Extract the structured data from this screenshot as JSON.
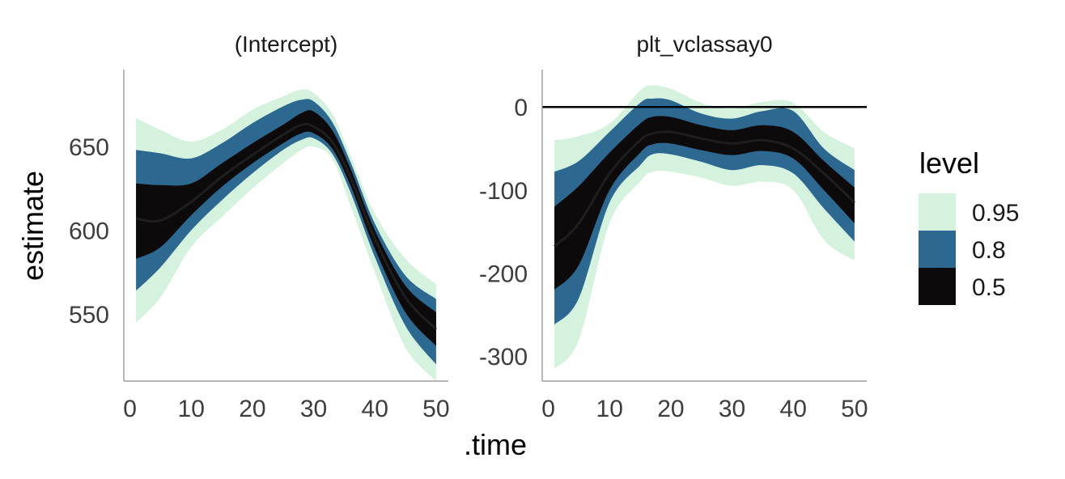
{
  "chart_data": {
    "type": "area",
    "xlabel": ".time",
    "ylabel": "estimate",
    "legend": {
      "title": "level",
      "position": "right",
      "entries": [
        {
          "label": "0.95",
          "color": "#d4f2de"
        },
        {
          "label": "0.8",
          "color": "#2d6891"
        },
        {
          "label": "0.5",
          "color": "#0d0a0b"
        }
      ]
    },
    "grid": false,
    "panels": [
      {
        "title": "(Intercept)",
        "xlim": [
          -1,
          52
        ],
        "ylim": [
          510,
          696
        ],
        "x_ticks": [
          0,
          10,
          20,
          30,
          40,
          50
        ],
        "y_ticks": [
          550,
          600,
          650
        ],
        "x": [
          1,
          5,
          10,
          15,
          20,
          25,
          28,
          30,
          33,
          36,
          40,
          45,
          50
        ],
        "median": [
          607,
          606,
          617,
          632,
          645,
          657,
          663,
          662,
          653,
          632,
          595,
          560,
          541
        ],
        "bands": [
          {
            "level": "0.95",
            "lower": [
              545,
              560,
              590,
              608,
              625,
              640,
              648,
              650,
              643,
              615,
              575,
              530,
              510
            ],
            "upper": [
              667,
              660,
              653,
              660,
              672,
              680,
              684,
              682,
              670,
              645,
              610,
              583,
              568
            ]
          },
          {
            "level": "0.8",
            "lower": [
              564,
              578,
              600,
              618,
              634,
              648,
              654,
              655,
              646,
              623,
              584,
              543,
              520
            ],
            "upper": [
              648,
              646,
              643,
              652,
              664,
              674,
              678,
              677,
              665,
              641,
              604,
              573,
              559
            ]
          },
          {
            "level": "0.5",
            "lower": [
              583,
              590,
              609,
              626,
              640,
              652,
              658,
              658,
              649,
              627,
              589,
              551,
              531
            ],
            "upper": [
              628,
              627,
              628,
              640,
              652,
              663,
              670,
              671,
              660,
              637,
              600,
              567,
              551
            ]
          }
        ]
      },
      {
        "title": "plt_vclassay0",
        "xlim": [
          -1,
          52
        ],
        "ylim": [
          -330,
          45
        ],
        "x_ticks": [
          0,
          10,
          20,
          30,
          40,
          50
        ],
        "y_ticks": [
          -300,
          -200,
          -100,
          0
        ],
        "reference_line": 0,
        "x": [
          1,
          5,
          10,
          15,
          17,
          20,
          25,
          30,
          35,
          40,
          45,
          50
        ],
        "median": [
          -168,
          -140,
          -80,
          -40,
          -32,
          -30,
          -38,
          -44,
          -40,
          -50,
          -80,
          -115
        ],
        "bands": [
          {
            "level": "0.95",
            "lower": [
              -315,
              -280,
              -140,
              -90,
              -78,
              -78,
              -85,
              -95,
              -90,
              -100,
              -160,
              -185
            ],
            "upper": [
              -40,
              -35,
              -20,
              20,
              26,
              22,
              5,
              -2,
              6,
              5,
              -30,
              -50
            ]
          },
          {
            "level": "0.8",
            "lower": [
              -262,
              -230,
              -115,
              -70,
              -57,
              -57,
              -66,
              -76,
              -70,
              -80,
              -122,
              -162
            ],
            "upper": [
              -78,
              -65,
              -30,
              5,
              10,
              8,
              -8,
              -14,
              -5,
              -5,
              -50,
              -76
            ]
          },
          {
            "level": "0.5",
            "lower": [
              -220,
              -190,
              -100,
              -55,
              -45,
              -44,
              -52,
              -58,
              -53,
              -62,
              -100,
              -140
            ],
            "upper": [
              -120,
              -95,
              -55,
              -20,
              -12,
              -12,
              -22,
              -28,
              -22,
              -30,
              -65,
              -97
            ]
          }
        ]
      }
    ]
  }
}
